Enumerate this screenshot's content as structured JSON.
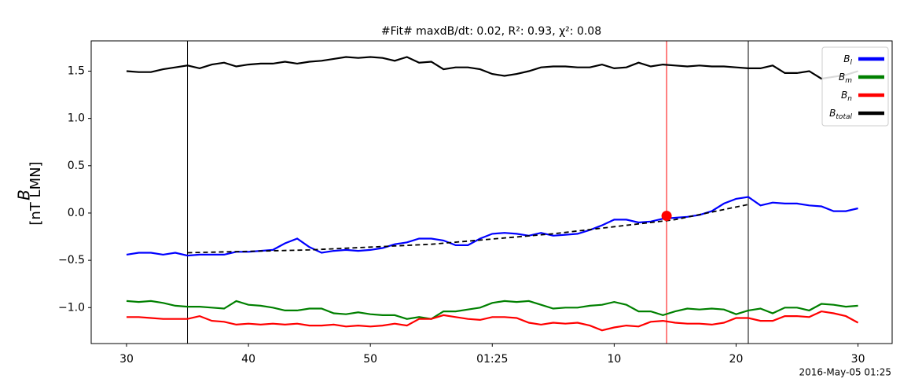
{
  "chart_data": {
    "type": "line",
    "title": "#Fit# maxdB/dt: 0.02, R²: 0.93, χ²: 0.08",
    "ylabel": "B",
    "ylabel_unit": "[nT LMN]",
    "xlabel": "2016-May-05 01:25",
    "x": [
      30,
      31,
      32,
      33,
      34,
      35,
      36,
      37,
      38,
      39,
      40,
      41,
      42,
      43,
      44,
      45,
      46,
      47,
      48,
      49,
      50,
      51,
      52,
      53,
      54,
      55,
      56,
      57,
      58,
      59,
      60,
      61,
      62,
      63,
      64,
      65,
      66,
      67,
      68,
      69,
      70,
      71,
      72,
      73,
      74,
      75,
      76,
      77,
      78,
      79,
      80,
      81,
      82,
      83,
      84,
      85,
      86,
      87,
      88,
      89,
      90
    ],
    "series": [
      {
        "name": "Bl",
        "color": "#0000ff",
        "values": [
          -0.44,
          -0.42,
          -0.42,
          -0.44,
          -0.42,
          -0.45,
          -0.44,
          -0.44,
          -0.44,
          -0.41,
          -0.41,
          -0.4,
          -0.39,
          -0.32,
          -0.27,
          -0.36,
          -0.42,
          -0.4,
          -0.39,
          -0.4,
          -0.39,
          -0.37,
          -0.33,
          -0.31,
          -0.27,
          -0.27,
          -0.29,
          -0.34,
          -0.34,
          -0.27,
          -0.22,
          -0.21,
          -0.22,
          -0.24,
          -0.21,
          -0.24,
          -0.23,
          -0.22,
          -0.18,
          -0.13,
          -0.07,
          -0.07,
          -0.1,
          -0.09,
          -0.06,
          -0.05,
          -0.04,
          -0.02,
          0.02,
          0.1,
          0.15,
          0.17,
          0.08,
          0.11,
          0.1,
          0.1,
          0.08,
          0.07,
          0.02,
          0.02,
          0.05
        ]
      },
      {
        "name": "Bm",
        "color": "#008000",
        "values": [
          -0.93,
          -0.94,
          -0.93,
          -0.95,
          -0.98,
          -0.99,
          -0.99,
          -1.0,
          -1.01,
          -0.93,
          -0.97,
          -0.98,
          -1.0,
          -1.03,
          -1.03,
          -1.01,
          -1.01,
          -1.06,
          -1.07,
          -1.05,
          -1.07,
          -1.08,
          -1.08,
          -1.12,
          -1.1,
          -1.12,
          -1.04,
          -1.04,
          -1.02,
          -1.0,
          -0.95,
          -0.93,
          -0.94,
          -0.93,
          -0.97,
          -1.01,
          -1.0,
          -1.0,
          -0.98,
          -0.97,
          -0.94,
          -0.97,
          -1.04,
          -1.04,
          -1.08,
          -1.04,
          -1.01,
          -1.02,
          -1.01,
          -1.02,
          -1.07,
          -1.03,
          -1.01,
          -1.06,
          -1.0,
          -1.0,
          -1.03,
          -0.96,
          -0.97,
          -0.99,
          -0.98
        ]
      },
      {
        "name": "Bn",
        "color": "#ff0000",
        "values": [
          -1.1,
          -1.1,
          -1.11,
          -1.12,
          -1.12,
          -1.12,
          -1.09,
          -1.14,
          -1.15,
          -1.18,
          -1.17,
          -1.18,
          -1.17,
          -1.18,
          -1.17,
          -1.19,
          -1.19,
          -1.18,
          -1.2,
          -1.19,
          -1.2,
          -1.19,
          -1.17,
          -1.19,
          -1.12,
          -1.12,
          -1.08,
          -1.1,
          -1.12,
          -1.13,
          -1.1,
          -1.1,
          -1.11,
          -1.16,
          -1.18,
          -1.16,
          -1.17,
          -1.16,
          -1.19,
          -1.24,
          -1.21,
          -1.19,
          -1.2,
          -1.15,
          -1.14,
          -1.16,
          -1.17,
          -1.17,
          -1.18,
          -1.16,
          -1.11,
          -1.11,
          -1.14,
          -1.14,
          -1.09,
          -1.09,
          -1.1,
          -1.04,
          -1.06,
          -1.09,
          -1.16
        ]
      },
      {
        "name": "Btotal",
        "color": "#000000",
        "values": [
          1.5,
          1.49,
          1.49,
          1.52,
          1.54,
          1.56,
          1.53,
          1.57,
          1.59,
          1.55,
          1.57,
          1.58,
          1.58,
          1.6,
          1.58,
          1.6,
          1.61,
          1.63,
          1.65,
          1.64,
          1.65,
          1.64,
          1.61,
          1.65,
          1.59,
          1.6,
          1.52,
          1.54,
          1.54,
          1.52,
          1.47,
          1.45,
          1.47,
          1.5,
          1.54,
          1.55,
          1.55,
          1.54,
          1.54,
          1.57,
          1.53,
          1.54,
          1.59,
          1.55,
          1.57,
          1.56,
          1.55,
          1.56,
          1.55,
          1.55,
          1.54,
          1.53,
          1.53,
          1.56,
          1.48,
          1.48,
          1.5,
          1.42,
          1.44,
          1.46,
          1.5
        ]
      }
    ],
    "fit_line": {
      "x": [
        35,
        45,
        55,
        65,
        75,
        81
      ],
      "values": [
        -0.42,
        -0.39,
        -0.33,
        -0.22,
        -0.07,
        0.09
      ],
      "color": "#000000",
      "dashed": true
    },
    "vlines": [
      {
        "x": 35,
        "color": "#000000"
      },
      {
        "x": 81,
        "color": "#000000"
      },
      {
        "x": 74.3,
        "color": "#ff0000"
      }
    ],
    "marker": {
      "x": 74.3,
      "y": -0.03,
      "color": "#ff0000"
    },
    "xlim": [
      27.1,
      92.8
    ],
    "ylim": [
      -1.38,
      1.82
    ],
    "xticks": [
      30,
      40,
      50,
      {
        "value": 60,
        "label": "01:25"
      },
      {
        "value": 70,
        "label": "10"
      },
      {
        "value": 80,
        "label": "20"
      },
      {
        "value": 90,
        "label": "30"
      }
    ],
    "yticks": [
      {
        "value": -1.0,
        "label": "−1.0"
      },
      {
        "value": -0.5,
        "label": "−0.5"
      },
      {
        "value": 0.0,
        "label": "0.0"
      },
      {
        "value": 0.5,
        "label": "0.5"
      },
      {
        "value": 1.0,
        "label": "1.0"
      },
      {
        "value": 1.5,
        "label": "1.5"
      }
    ],
    "grid": false,
    "legend": "upper right"
  }
}
